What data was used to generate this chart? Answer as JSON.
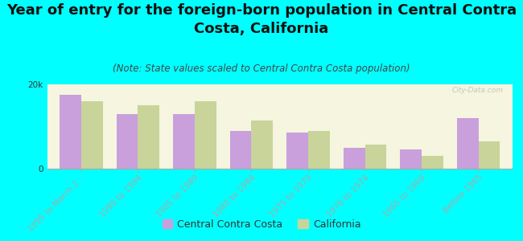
{
  "title": "Year of entry for the foreign-born population in Central Contra\nCosta, California",
  "subtitle": "(Note: State values scaled to Central Contra Costa population)",
  "categories": [
    "1995 to March 2...",
    "1990 to 1994",
    "1985 to 1989",
    "1980 to 1984",
    "1975 to 1979",
    "1970 to 1974",
    "1965 to 1969",
    "Before 1965"
  ],
  "central_values": [
    17500,
    13000,
    13000,
    9000,
    8500,
    5000,
    4500,
    12000
  ],
  "california_values": [
    16000,
    15000,
    16000,
    11500,
    9000,
    5800,
    3000,
    6500
  ],
  "bar_color_central": "#c9a0dc",
  "bar_color_california": "#c8d49a",
  "background_color": "#00ffff",
  "plot_bg_color": "#f5f5e0",
  "ylim": [
    0,
    20000
  ],
  "yticks": [
    0,
    20000
  ],
  "ytick_labels": [
    "0",
    "20k"
  ],
  "watermark": "City-Data.com",
  "legend_central": "Central Contra Costa",
  "legend_california": "California",
  "title_fontsize": 13,
  "subtitle_fontsize": 8.5,
  "tick_fontsize": 7.5
}
